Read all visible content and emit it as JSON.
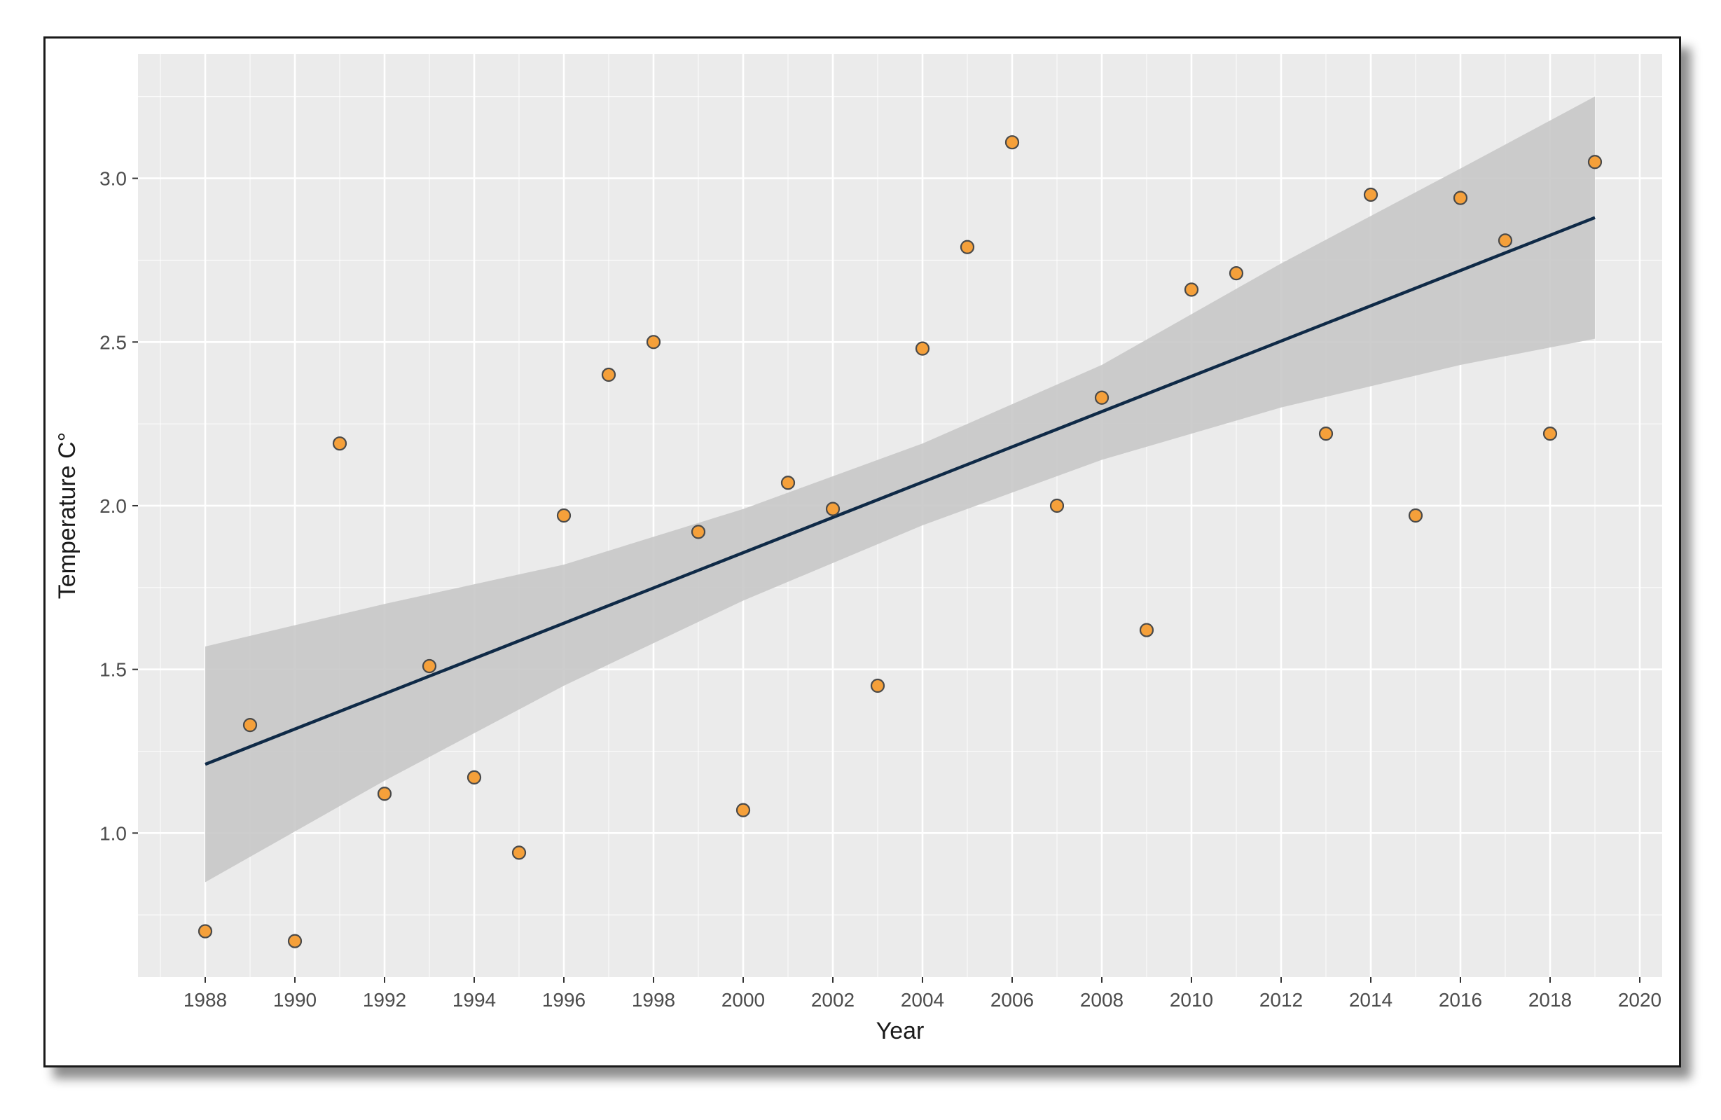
{
  "chart_data": {
    "type": "scatter",
    "xlabel": "Year",
    "ylabel": "Temperature C°",
    "xlim": [
      1986.5,
      2020.5
    ],
    "ylim": [
      0.56,
      3.38
    ],
    "x_ticks": [
      1988,
      1990,
      1992,
      1994,
      1996,
      1998,
      2000,
      2002,
      2004,
      2006,
      2008,
      2010,
      2012,
      2014,
      2016,
      2018,
      2020
    ],
    "y_ticks": [
      1.0,
      1.5,
      2.0,
      2.5,
      3.0
    ],
    "y_tick_labels": [
      "1.0",
      "1.5",
      "2.0",
      "2.5",
      "3.0"
    ],
    "grid": true,
    "legend": "none",
    "points": {
      "x": [
        1988,
        1989,
        1990,
        1991,
        1992,
        1993,
        1994,
        1995,
        1996,
        1997,
        1998,
        1999,
        2000,
        2001,
        2002,
        2003,
        2004,
        2005,
        2006,
        2007,
        2008,
        2009,
        2010,
        2011,
        2013,
        2014,
        2015,
        2016,
        2017,
        2018,
        2019
      ],
      "y": [
        0.7,
        1.33,
        0.67,
        2.19,
        1.12,
        1.51,
        1.17,
        0.94,
        1.97,
        2.4,
        2.5,
        1.92,
        1.07,
        2.07,
        1.99,
        1.45,
        2.48,
        2.79,
        3.11,
        2.0,
        2.33,
        1.62,
        2.66,
        2.71,
        2.22,
        2.95,
        1.97,
        2.94,
        2.81,
        2.22,
        3.05
      ]
    },
    "trend": {
      "x": [
        1988,
        2019
      ],
      "y": [
        1.21,
        2.88
      ]
    },
    "confidence_band": {
      "x": [
        1988,
        1992,
        1996,
        2000,
        2004,
        2008,
        2012,
        2016,
        2019
      ],
      "lower": [
        0.85,
        1.16,
        1.45,
        1.71,
        1.94,
        2.14,
        2.3,
        2.43,
        2.51
      ],
      "upper": [
        1.57,
        1.7,
        1.82,
        1.99,
        2.19,
        2.43,
        2.74,
        3.03,
        3.25
      ]
    },
    "colors": {
      "panel": "#ebebeb",
      "grid_major": "#ffffff",
      "band": "#c8c8c8",
      "trend": "#0f2a47",
      "point_fill": "#f5a03a",
      "point_stroke": "#4a4a4a",
      "tick_text": "#4d4d4d",
      "axis_title": "#1a1a1a"
    }
  }
}
